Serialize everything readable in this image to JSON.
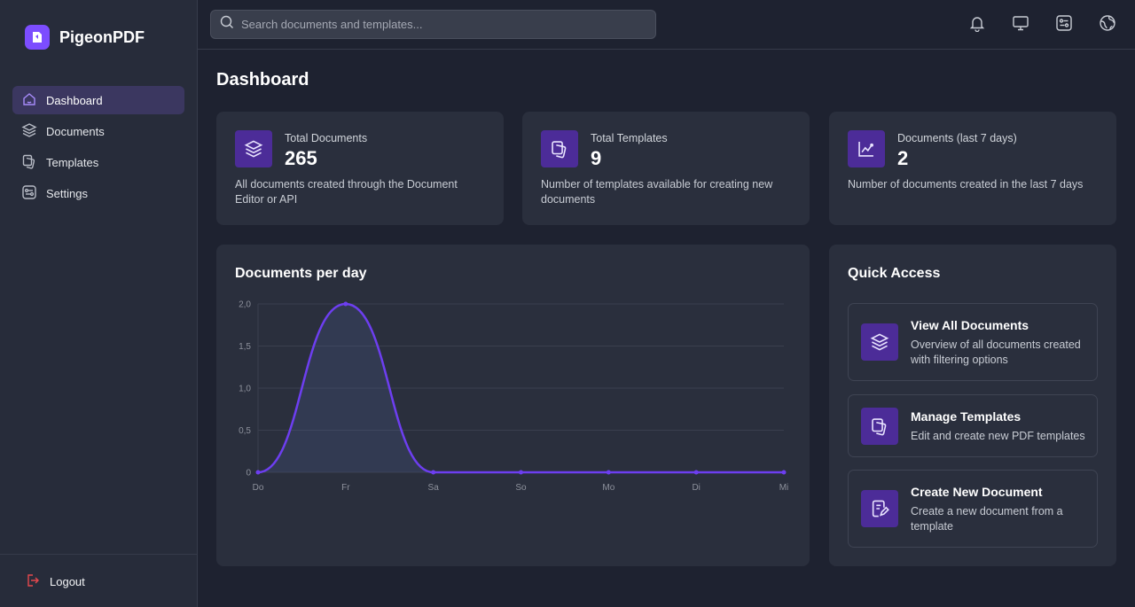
{
  "app": {
    "name": "PigeonPDF"
  },
  "sidebar": {
    "items": [
      {
        "label": "Dashboard",
        "icon": "home-icon",
        "active": true
      },
      {
        "label": "Documents",
        "icon": "layers-icon"
      },
      {
        "label": "Templates",
        "icon": "templates-icon"
      },
      {
        "label": "Settings",
        "icon": "settings-icon"
      }
    ],
    "logout_label": "Logout"
  },
  "search": {
    "placeholder": "Search documents and templates..."
  },
  "topbar": {
    "icons": [
      "bell-icon",
      "monitor-icon",
      "settings-toggle-icon",
      "globe-icon"
    ]
  },
  "page": {
    "title": "Dashboard"
  },
  "stats": [
    {
      "label": "Total Documents",
      "value": "265",
      "description": "All documents created through the Document Editor or API",
      "icon": "layers-icon"
    },
    {
      "label": "Total Templates",
      "value": "9",
      "description": "Number of templates available for creating new documents",
      "icon": "templates-icon"
    },
    {
      "label": "Documents (last 7 days)",
      "value": "2",
      "description": "Number of documents created in the last 7 days",
      "icon": "chart-line-icon"
    }
  ],
  "chart": {
    "title": "Documents per day"
  },
  "chart_data": {
    "type": "line",
    "categories": [
      "Do",
      "Fr",
      "Sa",
      "So",
      "Mo",
      "Di",
      "Mi"
    ],
    "series": [
      {
        "values": [
          0,
          2,
          0,
          0,
          0,
          0,
          0
        ]
      }
    ],
    "ylim": [
      0,
      2
    ],
    "yticks": [
      "0",
      "0,5",
      "1,0",
      "1,5",
      "2,0"
    ],
    "grid": true,
    "fill": "area",
    "color": "#6d3ef0"
  },
  "quick_access": {
    "title": "Quick Access",
    "items": [
      {
        "name": "View All Documents",
        "description": "Overview of all documents created with filtering options",
        "icon": "layers-icon"
      },
      {
        "name": "Manage Templates",
        "description": "Edit and create new PDF templates",
        "icon": "templates-icon"
      },
      {
        "name": "Create New Document",
        "description": "Create a new document from a template",
        "icon": "document-edit-icon"
      }
    ]
  },
  "colors": {
    "accent": "#7c4dff",
    "icon_bg": "#4c2c98",
    "logout": "#e5484d"
  }
}
